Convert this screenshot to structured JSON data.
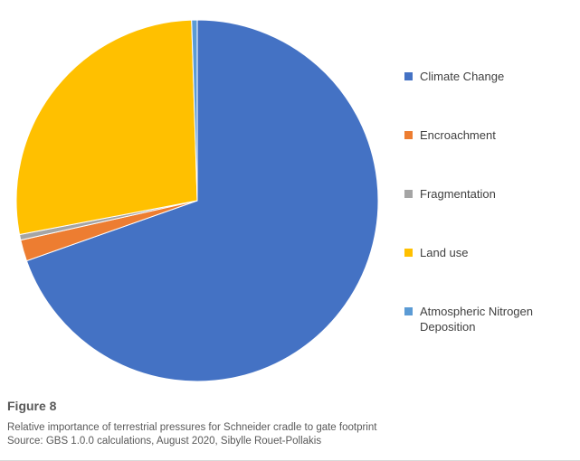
{
  "chart_data": {
    "type": "pie",
    "title": "",
    "categories": [
      "Climate Change",
      "Encroachment",
      "Fragmentation",
      "Land use",
      "Atmospheric Nitrogen Deposition"
    ],
    "values": [
      69.6,
      1.9,
      0.5,
      27.5,
      0.5
    ],
    "colors": [
      "#4472C4",
      "#ED7D31",
      "#A5A5A5",
      "#FFC000",
      "#5B9BD5"
    ],
    "units": "percent",
    "start_angle_deg": -90,
    "direction": "clockwise",
    "legend_position": "right",
    "data_labels": false
  },
  "caption": {
    "figure_label": "Figure 8",
    "description": "Relative importance of terrestrial pressures for Schneider cradle to gate footprint",
    "source": "Source: GBS 1.0.0 calculations, August 2020, Sibylle Rouet-Pollakis"
  }
}
